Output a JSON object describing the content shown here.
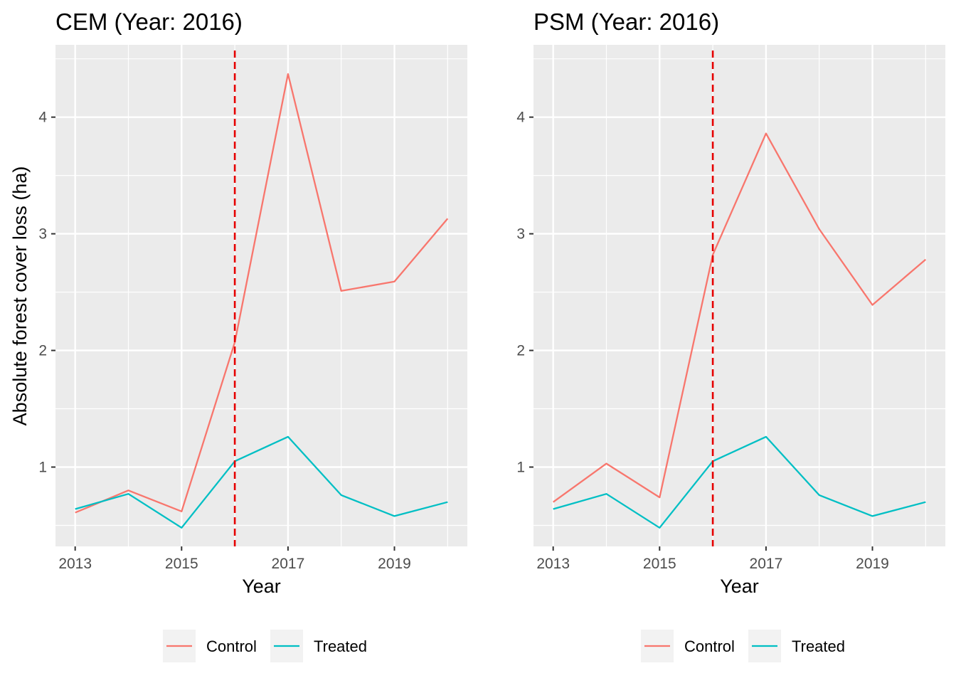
{
  "y_axis_title": "Absolute forest cover loss (ha)",
  "chart_data": [
    {
      "type": "line",
      "title": "CEM (Year: 2016)",
      "xlabel": "Year",
      "ylabel": "Absolute forest cover loss (ha)",
      "x": [
        2013,
        2014,
        2015,
        2016,
        2017,
        2018,
        2019,
        2020
      ],
      "x_ticks": [
        "2013",
        "2015",
        "2017",
        "2019"
      ],
      "y_ticks": [
        "1",
        "2",
        "3",
        "4"
      ],
      "xlim": [
        2012.63,
        2020.37
      ],
      "ylim": [
        0.32,
        4.62
      ],
      "reference_line": {
        "x": 2016,
        "color": "#e60000",
        "style": "dashed"
      },
      "grid": true,
      "legend_position": "bottom",
      "series": [
        {
          "name": "Control",
          "color": "#F8766D",
          "values": [
            0.61,
            0.8,
            0.62,
            2.07,
            4.37,
            2.51,
            2.59,
            3.13
          ]
        },
        {
          "name": "Treated",
          "color": "#00BFC4",
          "values": [
            0.64,
            0.77,
            0.48,
            1.05,
            1.26,
            0.76,
            0.58,
            0.7
          ]
        }
      ]
    },
    {
      "type": "line",
      "title": "PSM (Year: 2016)",
      "xlabel": "Year",
      "ylabel": "",
      "x": [
        2013,
        2014,
        2015,
        2016,
        2017,
        2018,
        2019,
        2020
      ],
      "x_ticks": [
        "2013",
        "2015",
        "2017",
        "2019"
      ],
      "y_ticks": [
        "1",
        "2",
        "3",
        "4"
      ],
      "xlim": [
        2012.63,
        2020.37
      ],
      "ylim": [
        0.32,
        4.62
      ],
      "reference_line": {
        "x": 2016,
        "color": "#e60000",
        "style": "dashed"
      },
      "grid": true,
      "legend_position": "bottom",
      "series": [
        {
          "name": "Control",
          "color": "#F8766D",
          "values": [
            0.7,
            1.03,
            0.74,
            2.82,
            3.86,
            3.04,
            2.39,
            2.78
          ]
        },
        {
          "name": "Treated",
          "color": "#00BFC4",
          "values": [
            0.64,
            0.77,
            0.48,
            1.05,
            1.26,
            0.76,
            0.58,
            0.7
          ]
        }
      ]
    }
  ]
}
